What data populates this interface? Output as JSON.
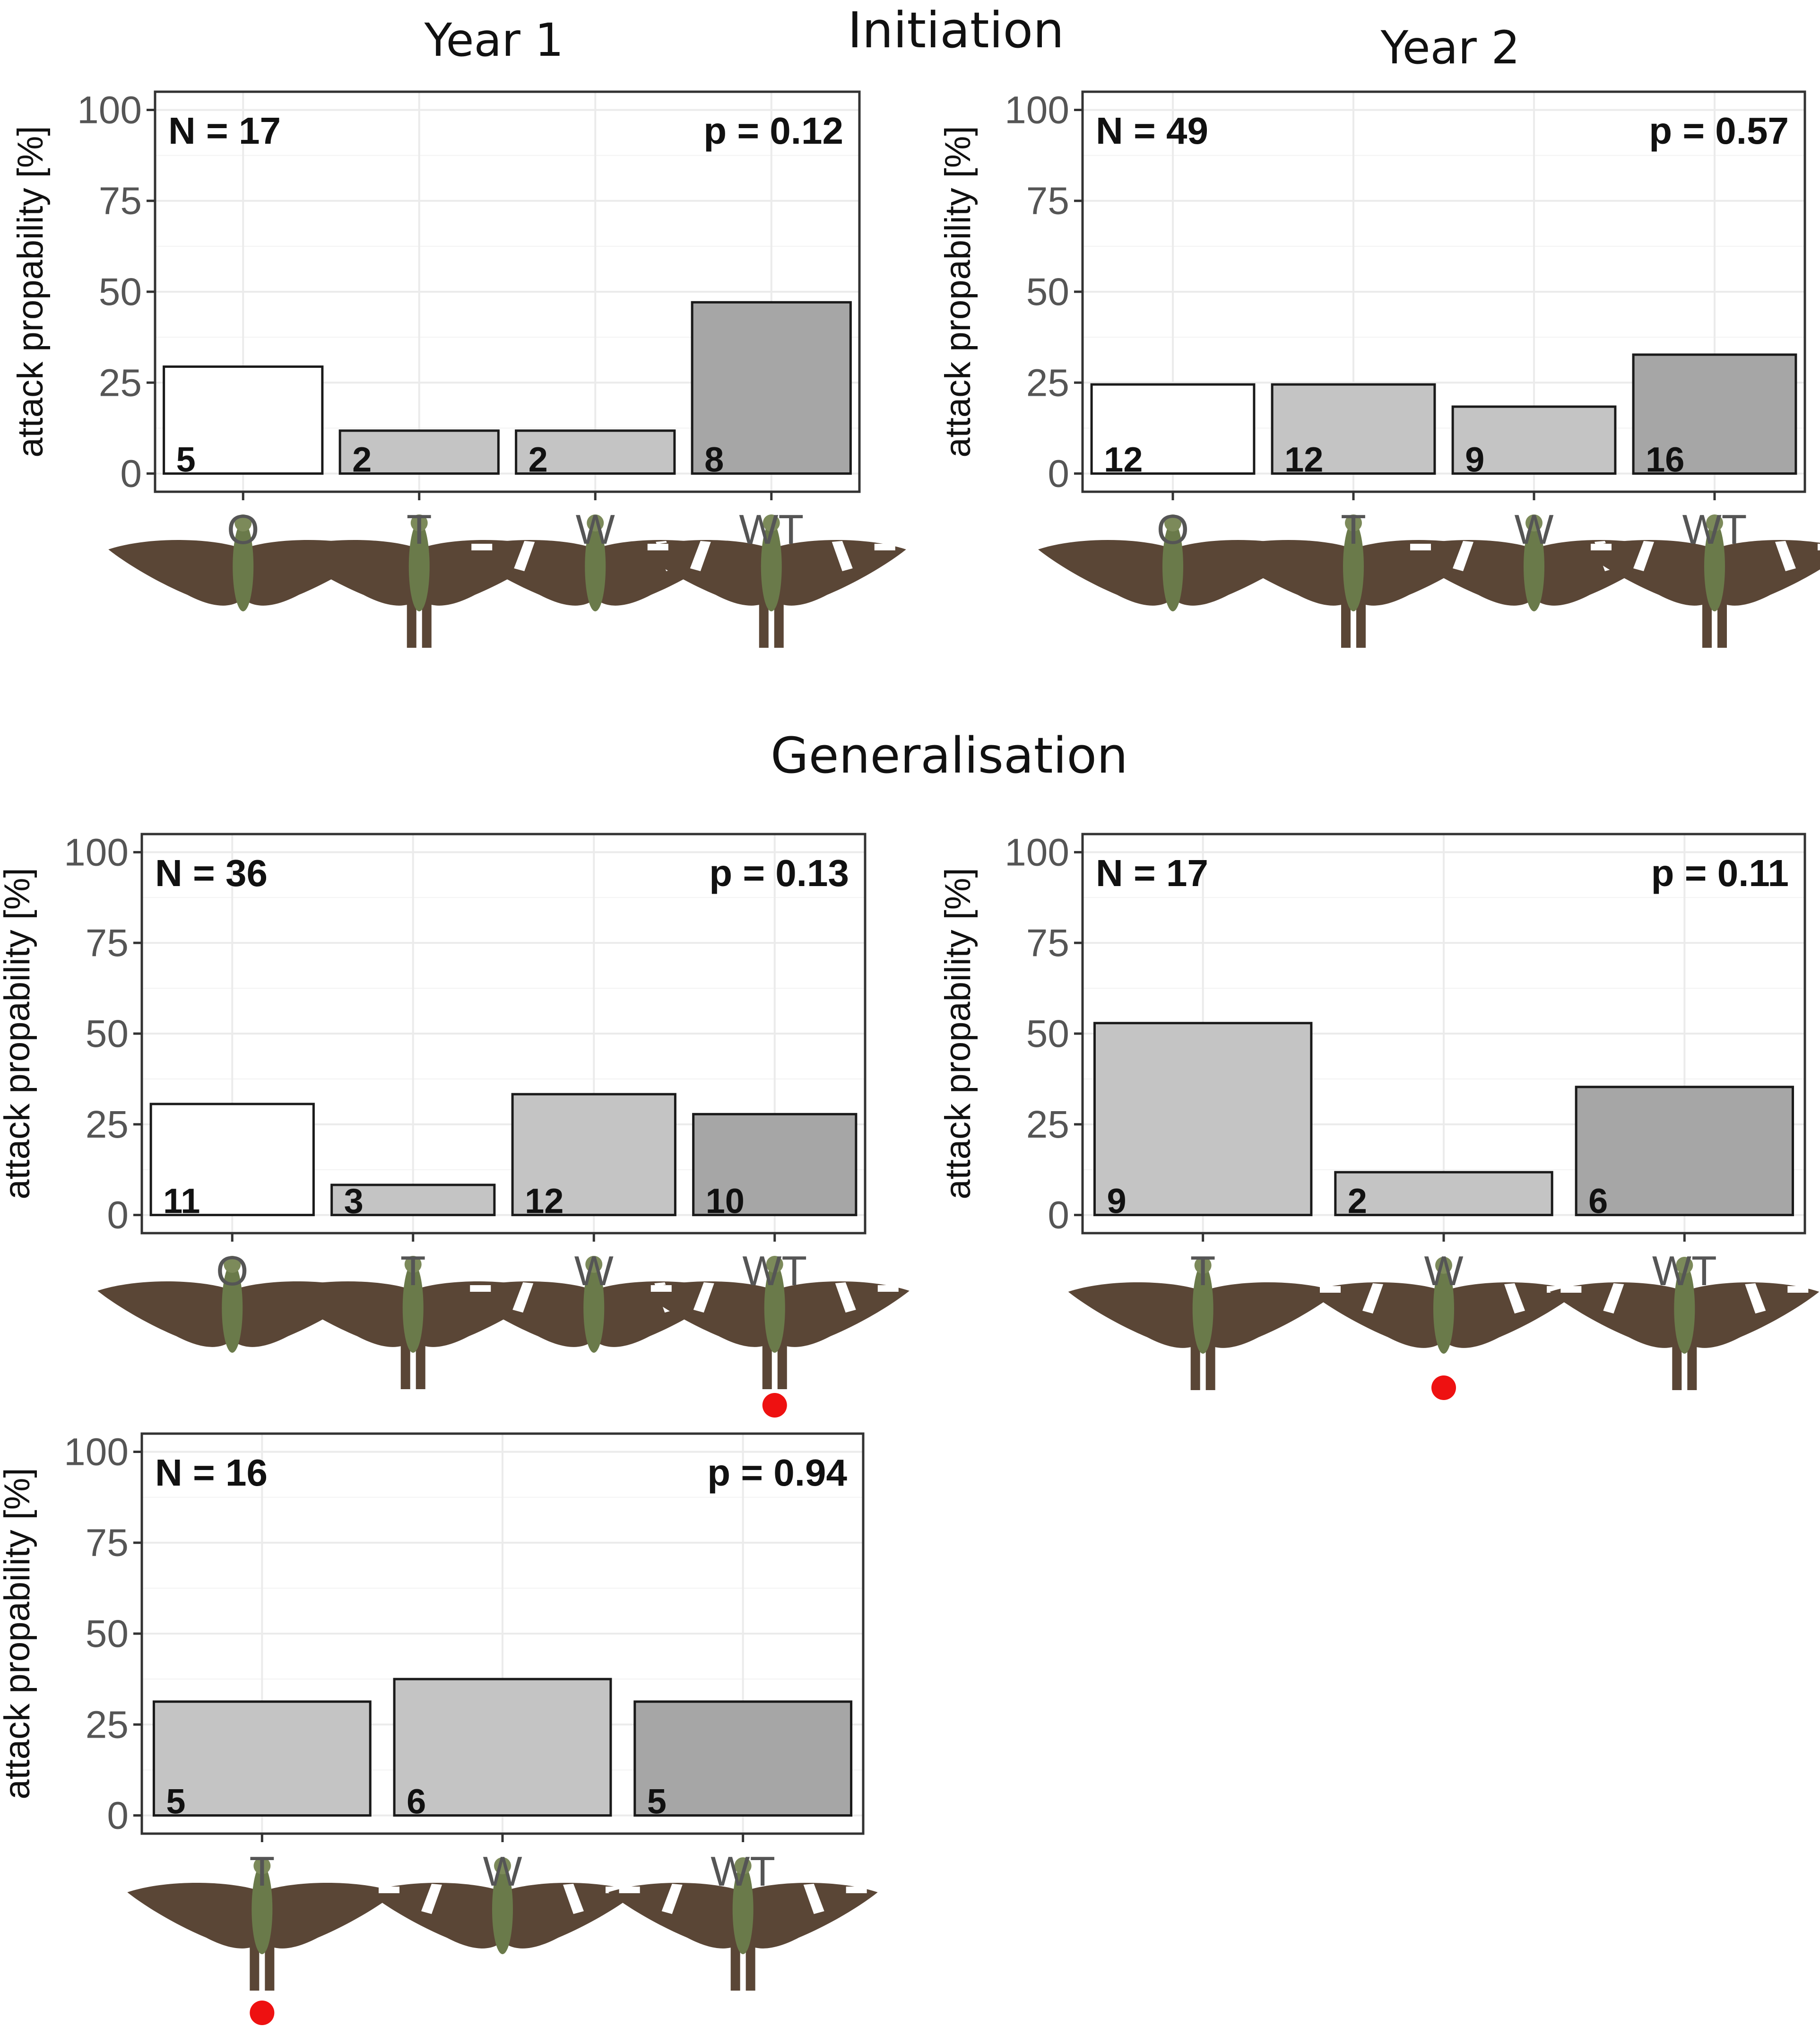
{
  "titles": {
    "initiation": "Initiation",
    "year1": "Year 1",
    "year2": "Year 2",
    "generalisation": "Generalisation"
  },
  "colors": {
    "O": "#ffffff",
    "T": "#c4c4c4",
    "W": "#c4c4c4",
    "WT": "#a6a6a6",
    "marker": "#ee1111",
    "wing": "#5a4636",
    "body": "#6a7a4a",
    "band": "#ffffff"
  },
  "chart_data": [
    {
      "type": "bar",
      "panel": "Initiation, Year 1",
      "ylabel": "attack propability [%]",
      "ylim": [
        0,
        100
      ],
      "yticks": [
        "0",
        "25",
        "50",
        "75",
        "100"
      ],
      "n_label": "N = 17",
      "p_label": "p = 0.12",
      "categories": [
        "O",
        "T",
        "W",
        "WT"
      ],
      "values": [
        29.4,
        11.8,
        11.8,
        47.1
      ],
      "counts": [
        "5",
        "2",
        "2",
        "8"
      ],
      "tails": [
        false,
        true,
        false,
        true
      ],
      "bands": [
        false,
        false,
        true,
        true
      ],
      "marked": []
    },
    {
      "type": "bar",
      "panel": "Initiation, Year 2",
      "ylabel": "attack propability [%]",
      "ylim": [
        0,
        100
      ],
      "yticks": [
        "0",
        "25",
        "50",
        "75",
        "100"
      ],
      "n_label": "N = 49",
      "p_label": "p = 0.57",
      "categories": [
        "O",
        "T",
        "W",
        "WT"
      ],
      "values": [
        24.5,
        24.5,
        18.4,
        32.7
      ],
      "counts": [
        "12",
        "12",
        "9",
        "16"
      ],
      "tails": [
        false,
        true,
        false,
        true
      ],
      "bands": [
        false,
        false,
        true,
        true
      ],
      "marked": []
    },
    {
      "type": "bar",
      "panel": "Generalisation, left",
      "ylabel": "attack propability [%]",
      "ylim": [
        0,
        100
      ],
      "yticks": [
        "0",
        "25",
        "50",
        "75",
        "100"
      ],
      "n_label": "N = 36",
      "p_label": "p = 0.13",
      "categories": [
        "O",
        "T",
        "W",
        "WT"
      ],
      "values": [
        30.6,
        8.3,
        33.3,
        27.8
      ],
      "counts": [
        "11",
        "3",
        "12",
        "10"
      ],
      "tails": [
        false,
        true,
        false,
        true
      ],
      "bands": [
        false,
        false,
        true,
        true
      ],
      "marked": [
        3
      ]
    },
    {
      "type": "bar",
      "panel": "Generalisation, right",
      "ylabel": "attack propability [%]",
      "ylim": [
        0,
        100
      ],
      "yticks": [
        "0",
        "25",
        "50",
        "75",
        "100"
      ],
      "n_label": "N = 17",
      "p_label": "p = 0.11",
      "categories": [
        "T",
        "W",
        "WT"
      ],
      "values": [
        52.9,
        11.8,
        35.3
      ],
      "counts": [
        "9",
        "2",
        "6"
      ],
      "tails": [
        true,
        false,
        true
      ],
      "bands": [
        false,
        true,
        true
      ],
      "marked": [
        1
      ]
    },
    {
      "type": "bar",
      "panel": "Generalisation, bottom",
      "ylabel": "attack propability [%]",
      "ylim": [
        0,
        100
      ],
      "yticks": [
        "0",
        "25",
        "50",
        "75",
        "100"
      ],
      "n_label": "N = 16",
      "p_label": "p = 0.94",
      "categories": [
        "T",
        "W",
        "WT"
      ],
      "values": [
        31.3,
        37.5,
        31.3
      ],
      "counts": [
        "5",
        "6",
        "5"
      ],
      "tails": [
        true,
        false,
        true
      ],
      "bands": [
        false,
        true,
        true
      ],
      "marked": [
        0
      ]
    }
  ]
}
